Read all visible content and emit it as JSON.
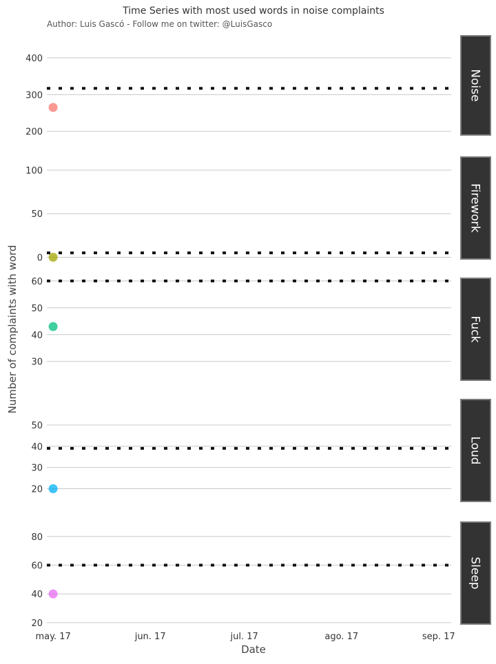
{
  "chart_data": {
    "type": "scatter",
    "title": "Time Series with most used words in noise complaints",
    "subtitle": "Author: Luis Gascó - Follow me on twitter: @LuisGasco",
    "xlabel": "Date",
    "ylabel": "Number of complaints with word",
    "x_ticks": [
      "may. 17",
      "jun. 17",
      "jul. 17",
      "ago. 17",
      "sep. 17"
    ],
    "x_tick_dates": [
      "2017-05-01",
      "2017-06-01",
      "2017-07-01",
      "2017-08-01",
      "2017-09-01"
    ],
    "xlim": [
      "2017-04-29",
      "2017-09-05"
    ],
    "grid": true,
    "legend": "none",
    "panels": [
      {
        "name": "Noise",
        "color": "#F8766D",
        "ylim": [
          190,
          460
        ],
        "yticks": [
          200,
          300,
          400
        ],
        "reference": 317,
        "points": [
          {
            "x": "2017-05-01",
            "y": 265
          }
        ]
      },
      {
        "name": "Firework",
        "color": "#A3A500",
        "ylim": [
          -2,
          115
        ],
        "yticks": [
          0,
          50,
          100
        ],
        "reference": 5,
        "points": [
          {
            "x": "2017-05-01",
            "y": 0
          }
        ]
      },
      {
        "name": "Fuck",
        "color": "#00BF7D",
        "ylim": [
          23,
          61
        ],
        "yticks": [
          30,
          40,
          50,
          60
        ],
        "reference": 60,
        "points": [
          {
            "x": "2017-05-01",
            "y": 43
          }
        ]
      },
      {
        "name": "Loud",
        "color": "#00B0F6",
        "ylim": [
          14,
          62
        ],
        "yticks": [
          20,
          30,
          40,
          50
        ],
        "reference": 39,
        "points": [
          {
            "x": "2017-05-01",
            "y": 20
          }
        ]
      },
      {
        "name": "Sleep",
        "color": "#E76BF3",
        "ylim": [
          19,
          90
        ],
        "yticks": [
          20,
          40,
          60,
          80
        ],
        "reference": 60,
        "points": [
          {
            "x": "2017-05-01",
            "y": 40
          }
        ]
      }
    ]
  },
  "colors": {
    "strip_background": "#333333",
    "strip_border": "#7a7a7a",
    "grid": "#c8c8c8",
    "reference_line": "#111111"
  }
}
